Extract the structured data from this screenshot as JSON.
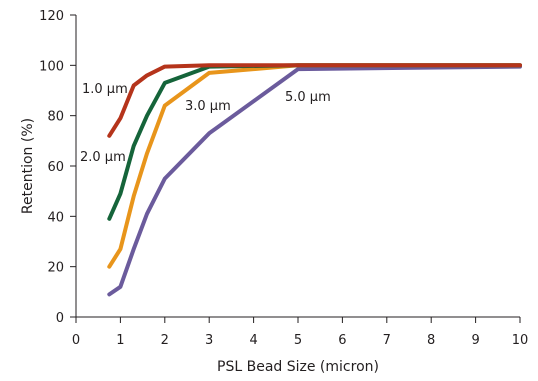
{
  "chart_data": {
    "type": "line",
    "title": "",
    "xlabel": "PSL Bead Size (micron)",
    "ylabel": "Retention (%)",
    "xlim": [
      0,
      10
    ],
    "ylim": [
      0,
      120
    ],
    "xticks": [
      "0",
      "1",
      "2",
      "3",
      "4",
      "5",
      "6",
      "7",
      "8",
      "9",
      "10"
    ],
    "yticks": [
      "0",
      "20",
      "40",
      "60",
      "80",
      "100",
      "120"
    ],
    "grid": false,
    "legend": "inline labels",
    "series": [
      {
        "name": "1.0 µm",
        "color": "#b5341b",
        "points": [
          [
            0.75,
            72
          ],
          [
            1.0,
            79
          ],
          [
            1.3,
            92
          ],
          [
            1.6,
            96
          ],
          [
            2.0,
            99.5
          ],
          [
            3.0,
            100
          ],
          [
            5.0,
            100
          ],
          [
            10.0,
            100
          ]
        ]
      },
      {
        "name": "2.0 µm",
        "color": "#15643a",
        "points": [
          [
            0.75,
            39
          ],
          [
            1.0,
            49
          ],
          [
            1.3,
            68
          ],
          [
            1.6,
            80
          ],
          [
            2.0,
            93
          ],
          [
            3.0,
            99.5
          ],
          [
            5.0,
            100
          ],
          [
            10.0,
            100
          ]
        ]
      },
      {
        "name": "3.0 µm",
        "color": "#e8951b",
        "points": [
          [
            0.75,
            20
          ],
          [
            1.0,
            27
          ],
          [
            1.3,
            48
          ],
          [
            1.6,
            65
          ],
          [
            2.0,
            84
          ],
          [
            3.0,
            97
          ],
          [
            5.0,
            100
          ],
          [
            10.0,
            100
          ]
        ]
      },
      {
        "name": "5.0 µm",
        "color": "#6b5b9c",
        "points": [
          [
            0.75,
            9
          ],
          [
            1.0,
            12
          ],
          [
            1.3,
            27
          ],
          [
            1.6,
            41
          ],
          [
            2.0,
            55
          ],
          [
            3.0,
            73
          ],
          [
            5.0,
            98.5
          ],
          [
            10.0,
            99.5
          ]
        ]
      }
    ]
  }
}
